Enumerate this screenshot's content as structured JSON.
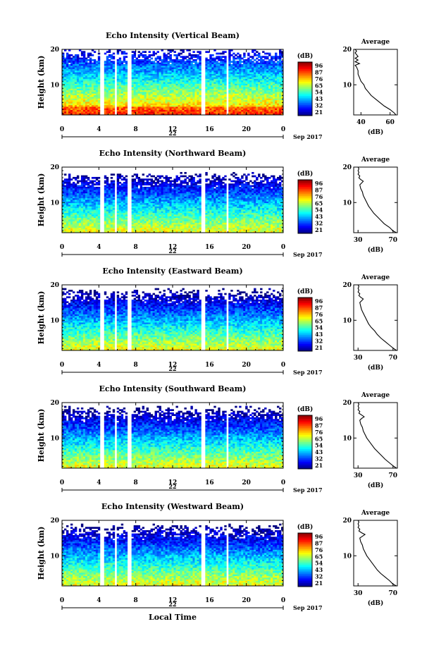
{
  "figure": {
    "x_axis_title": "Local Time",
    "date_label": "Sep 2017",
    "day_label": "22",
    "average_title": "Average",
    "colorbar_unit": "(dB)",
    "average_xlabel": "(dB)"
  },
  "chart_data": [
    {
      "type": "heatmap",
      "title": "Echo Intensity (Vertical Beam)",
      "ylabel": "Height (km)",
      "xlabel": "Local Time",
      "x_ticks": [
        "0",
        "4",
        "8",
        "12",
        "16",
        "20",
        "0"
      ],
      "y_ticks": [
        "10",
        "20"
      ],
      "xlim": [
        0,
        24
      ],
      "ylim": [
        1.5,
        20
      ],
      "colorbar_ticks": [
        "96",
        "87",
        "76",
        "65",
        "54",
        "43",
        "32",
        "21"
      ],
      "data_top_km": 19.8,
      "gaps_hours": [
        [
          4.1,
          4.5
        ],
        [
          5.7,
          6.0
        ],
        [
          7.1,
          7.5
        ],
        [
          15.1,
          15.5
        ],
        [
          17.8,
          18.0
        ],
        [
          18.2,
          18.4
        ]
      ],
      "average_profile": {
        "xlim": [
          35,
          65
        ],
        "x_ticks": [
          "40",
          "60"
        ],
        "y_ticks": [
          "10",
          "20"
        ],
        "height_km": [
          1.5,
          2,
          3,
          4,
          5,
          6,
          7,
          8,
          9,
          10,
          11,
          12,
          13,
          14,
          15,
          15.5,
          16,
          16.5,
          17,
          17.5,
          18,
          18.5,
          19,
          19.5,
          20
        ],
        "value_db": [
          64,
          63,
          60,
          56,
          53,
          50,
          47,
          45,
          43,
          42,
          40,
          39,
          38,
          38,
          37,
          36,
          39,
          36,
          38,
          36,
          38,
          37,
          36,
          37,
          36
        ]
      }
    },
    {
      "type": "heatmap",
      "title": "Echo Intensity (Northward Beam)",
      "ylabel": "Height (km)",
      "xlabel": "Local Time",
      "x_ticks": [
        "0",
        "4",
        "8",
        "12",
        "16",
        "20",
        "0"
      ],
      "y_ticks": [
        "10",
        "20"
      ],
      "xlim": [
        0,
        24
      ],
      "ylim": [
        1.5,
        20
      ],
      "colorbar_ticks": [
        "96",
        "87",
        "76",
        "65",
        "54",
        "43",
        "32",
        "21"
      ],
      "data_top_km": 18.0,
      "gaps_hours": [
        [
          4.1,
          4.5
        ],
        [
          5.7,
          6.0
        ],
        [
          7.1,
          7.5
        ],
        [
          15.1,
          15.5
        ],
        [
          17.8,
          18.0
        ],
        [
          18.2,
          18.4
        ]
      ],
      "average_profile": {
        "xlim": [
          25,
          75
        ],
        "x_ticks": [
          "30",
          "70"
        ],
        "y_ticks": [
          "10",
          "20"
        ],
        "height_km": [
          1.5,
          2,
          3,
          4,
          5,
          6,
          7,
          8,
          9,
          10,
          11,
          12,
          13,
          14,
          15,
          15.5,
          16,
          16.5,
          17,
          17.5,
          18,
          18.5,
          19,
          19.5,
          20
        ],
        "value_db": [
          74,
          70,
          66,
          60,
          56,
          52,
          48,
          45,
          42,
          40,
          38,
          36,
          35,
          33,
          32,
          34,
          36,
          33,
          31,
          32,
          30,
          31,
          30,
          31,
          30
        ]
      }
    },
    {
      "type": "heatmap",
      "title": "Echo Intensity (Eastward Beam)",
      "ylabel": "Height (km)",
      "xlabel": "Local Time",
      "x_ticks": [
        "0",
        "4",
        "8",
        "12",
        "16",
        "20",
        "0"
      ],
      "y_ticks": [
        "10",
        "20"
      ],
      "xlim": [
        0,
        24
      ],
      "ylim": [
        1.5,
        20
      ],
      "colorbar_ticks": [
        "96",
        "87",
        "76",
        "65",
        "54",
        "43",
        "32",
        "21"
      ],
      "data_top_km": 18.5,
      "gaps_hours": [
        [
          4.1,
          4.5
        ],
        [
          5.7,
          6.0
        ],
        [
          7.1,
          7.5
        ],
        [
          15.1,
          15.5
        ],
        [
          17.8,
          18.0
        ],
        [
          18.2,
          18.4
        ]
      ],
      "average_profile": {
        "xlim": [
          25,
          75
        ],
        "x_ticks": [
          "30",
          "70"
        ],
        "y_ticks": [
          "10",
          "20"
        ],
        "height_km": [
          1.5,
          2,
          3,
          4,
          5,
          6,
          7,
          8,
          9,
          10,
          11,
          12,
          13,
          14,
          15,
          15.5,
          16,
          16.5,
          17,
          17.5,
          18,
          18.5,
          19,
          19.5,
          20
        ],
        "value_db": [
          74,
          71,
          66,
          61,
          56,
          52,
          49,
          45,
          42,
          40,
          38,
          36,
          34,
          33,
          32,
          34,
          36,
          33,
          31,
          32,
          30,
          31,
          30,
          31,
          30
        ]
      }
    },
    {
      "type": "heatmap",
      "title": "Echo Intensity (Southward Beam)",
      "ylabel": "Height (km)",
      "xlabel": "Local Time",
      "x_ticks": [
        "0",
        "4",
        "8",
        "12",
        "16",
        "20",
        "0"
      ],
      "y_ticks": [
        "10",
        "20"
      ],
      "xlim": [
        0,
        24
      ],
      "ylim": [
        1.5,
        20
      ],
      "colorbar_ticks": [
        "96",
        "87",
        "76",
        "65",
        "54",
        "43",
        "32",
        "21"
      ],
      "data_top_km": 18.5,
      "gaps_hours": [
        [
          4.1,
          4.5
        ],
        [
          5.7,
          6.0
        ],
        [
          7.1,
          7.5
        ],
        [
          15.1,
          15.5
        ],
        [
          17.8,
          18.0
        ],
        [
          18.2,
          18.4
        ]
      ],
      "average_profile": {
        "xlim": [
          25,
          75
        ],
        "x_ticks": [
          "30",
          "70"
        ],
        "y_ticks": [
          "10",
          "20"
        ],
        "height_km": [
          1.5,
          2,
          3,
          4,
          5,
          6,
          7,
          8,
          9,
          10,
          11,
          12,
          13,
          14,
          15,
          15.5,
          16,
          16.5,
          17,
          17.5,
          18,
          18.5,
          19,
          19.5,
          20
        ],
        "value_db": [
          74,
          71,
          66,
          61,
          57,
          53,
          49,
          46,
          43,
          40,
          38,
          36,
          35,
          33,
          32,
          34,
          37,
          34,
          31,
          32,
          30,
          31,
          30,
          31,
          30
        ]
      }
    },
    {
      "type": "heatmap",
      "title": "Echo Intensity (Westward Beam)",
      "ylabel": "Height (km)",
      "xlabel": "Local Time",
      "x_ticks": [
        "0",
        "4",
        "8",
        "12",
        "16",
        "20",
        "0"
      ],
      "y_ticks": [
        "10",
        "20"
      ],
      "xlim": [
        0,
        24
      ],
      "ylim": [
        1.5,
        20
      ],
      "colorbar_ticks": [
        "96",
        "87",
        "76",
        "65",
        "54",
        "43",
        "32",
        "21"
      ],
      "data_top_km": 18.5,
      "gaps_hours": [
        [
          4.1,
          4.5
        ],
        [
          5.7,
          6.0
        ],
        [
          7.1,
          7.5
        ],
        [
          15.1,
          15.5
        ],
        [
          17.8,
          18.0
        ],
        [
          18.2,
          18.4
        ]
      ],
      "average_profile": {
        "xlim": [
          25,
          75
        ],
        "x_ticks": [
          "30",
          "70"
        ],
        "y_ticks": [
          "10",
          "20"
        ],
        "height_km": [
          1.5,
          2,
          3,
          4,
          5,
          6,
          7,
          8,
          9,
          10,
          11,
          12,
          13,
          14,
          15,
          15.5,
          16,
          16.5,
          17,
          17.5,
          18,
          18.5,
          19,
          19.5,
          20
        ],
        "value_db": [
          74,
          70,
          66,
          61,
          56,
          52,
          49,
          46,
          43,
          40,
          38,
          36,
          35,
          33,
          32,
          35,
          38,
          34,
          31,
          32,
          30,
          31,
          30,
          31,
          30
        ]
      }
    }
  ]
}
